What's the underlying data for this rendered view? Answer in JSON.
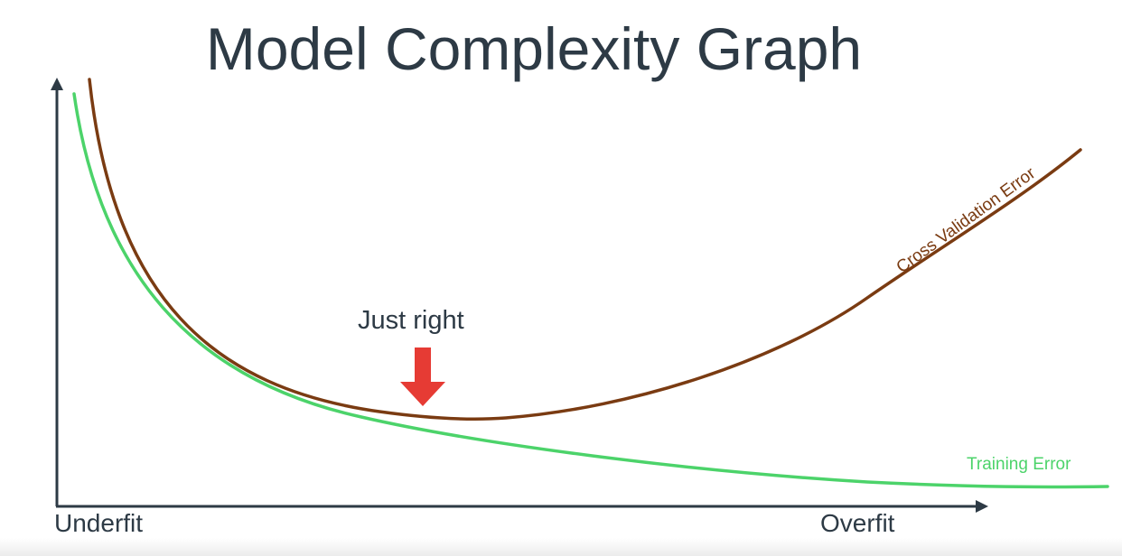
{
  "title": "Model Complexity Graph",
  "x_axis": {
    "left_label": "Underfit",
    "right_label": "Overfit"
  },
  "callout": {
    "label": "Just right",
    "arrow_color": "#e63b34"
  },
  "curves": {
    "cross_validation": {
      "label": "Cross Validation Error",
      "color": "#7a3b12"
    },
    "training": {
      "label": "Training Error",
      "color": "#4cd36a"
    }
  },
  "axis_color": "#2d3a45"
}
